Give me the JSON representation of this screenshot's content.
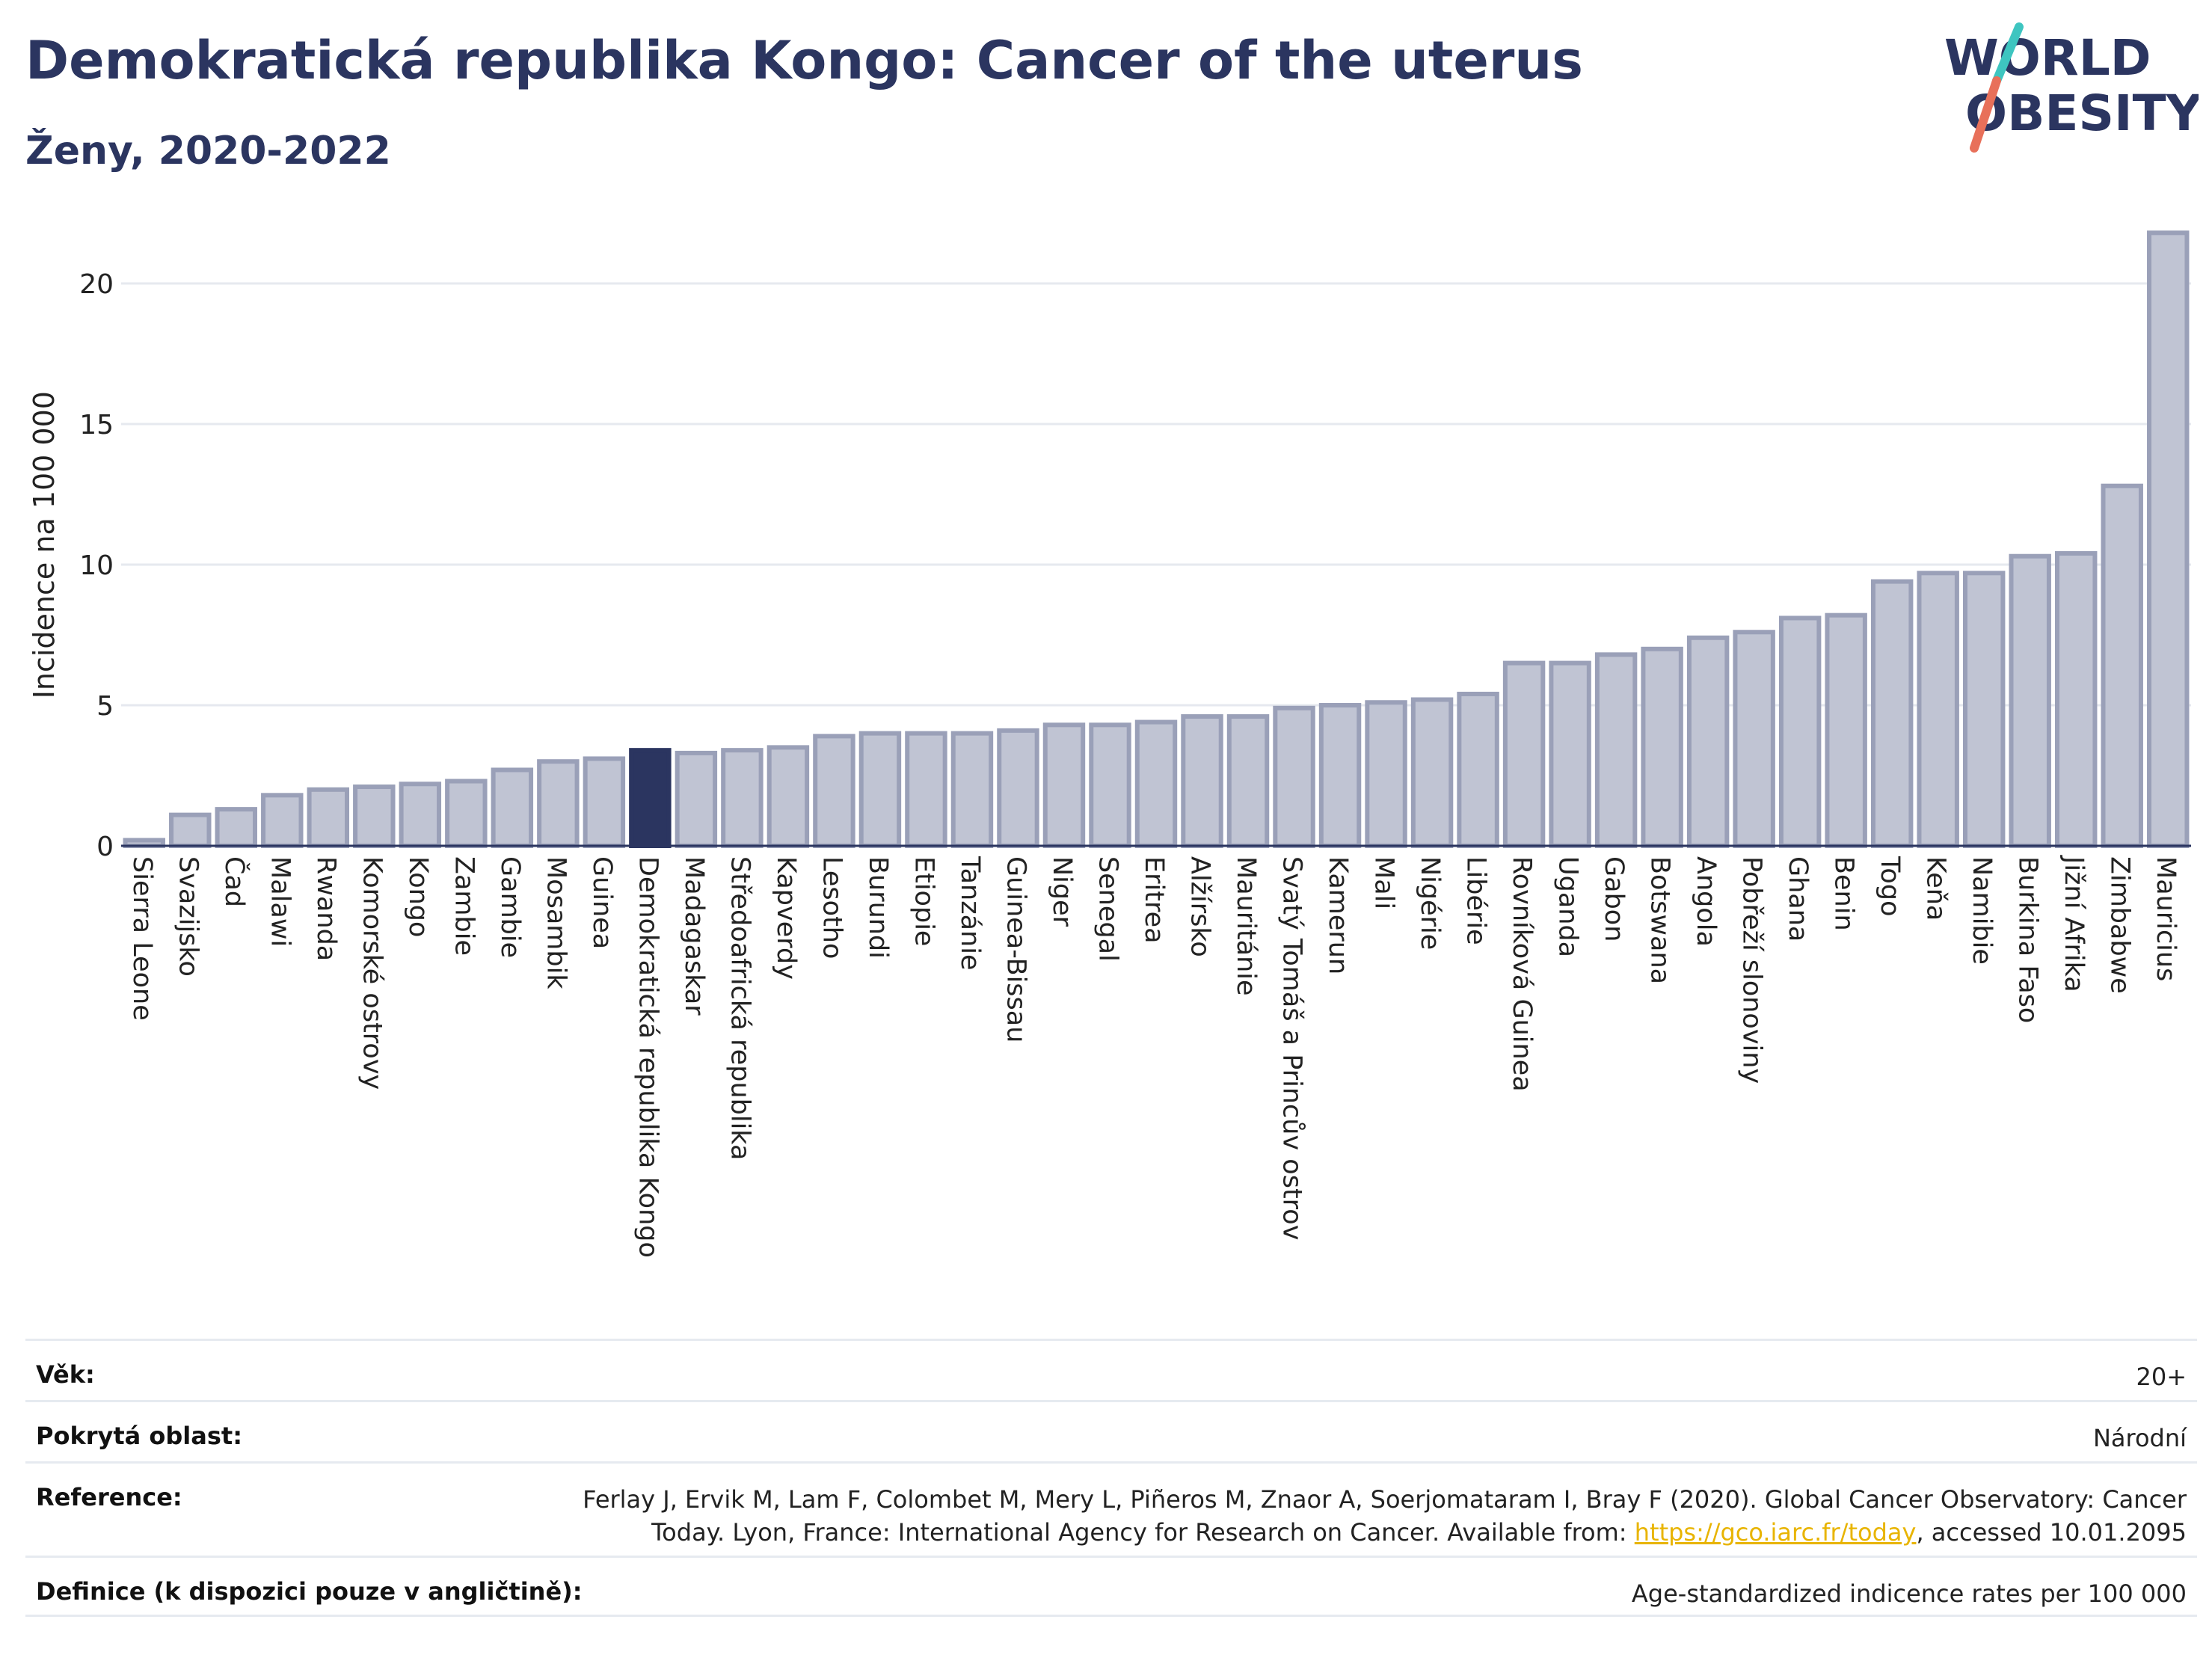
{
  "header": {
    "title": "Demokratická republika Kongo: Cancer of the uterus",
    "subtitle": "Ženy, 2020-2022"
  },
  "logo": {
    "line1": "WORLD",
    "line2": "OBESITY"
  },
  "colors": {
    "highlight": "#2b3560",
    "bar_fill": "#c0c4d3",
    "bar_stroke": "#9aa0b8",
    "text": "#2b3560",
    "logo_teal": "#3ec5c0",
    "logo_coral": "#e8705a"
  },
  "chart_data": {
    "type": "bar",
    "ylabel": "Incidence na 100 000",
    "ylim": [
      0,
      22
    ],
    "yticks": [
      0,
      5,
      10,
      15,
      20
    ],
    "grid": true,
    "highlight": "Demokratická republika Kongo",
    "categories": [
      "Sierra Leone",
      "Svazijsko",
      "Čad",
      "Malawi",
      "Rwanda",
      "Komorské ostrovy",
      "Kongo",
      "Zambie",
      "Gambie",
      "Mosambik",
      "Guinea",
      "Demokratická republika Kongo",
      "Madagaskar",
      "Středoafrická republika",
      "Kapverdy",
      "Lesotho",
      "Burundi",
      "Etiopie",
      "Tanzánie",
      "Guinea-Bissau",
      "Niger",
      "Senegal",
      "Eritrea",
      "Alžírsko",
      "Mauritánie",
      "Svatý Tomáš a Princův ostrov",
      "Kamerun",
      "Mali",
      "Nigérie",
      "Libérie",
      "Rovníková Guinea",
      "Uganda",
      "Gabon",
      "Botswana",
      "Angola",
      "Pobřeží slonoviny",
      "Ghana",
      "Benin",
      "Togo",
      "Keňa",
      "Namibie",
      "Burkina Faso",
      "Jižní Afrika",
      "Zimbabwe",
      "Mauricius"
    ],
    "values": [
      0.2,
      1.1,
      1.3,
      1.8,
      2.0,
      2.1,
      2.2,
      2.3,
      2.7,
      3.0,
      3.1,
      3.4,
      3.3,
      3.4,
      3.5,
      3.9,
      4.0,
      4.0,
      4.0,
      4.1,
      4.3,
      4.3,
      4.4,
      4.6,
      4.6,
      4.9,
      5.0,
      5.1,
      5.2,
      5.4,
      6.5,
      6.5,
      6.8,
      7.0,
      7.4,
      7.6,
      8.1,
      8.2,
      9.4,
      9.7,
      9.7,
      10.3,
      10.4,
      12.8,
      21.8
    ]
  },
  "info": {
    "rows": [
      {
        "key": "Věk:",
        "value": "20+"
      },
      {
        "key": "Pokrytá oblast:",
        "value": "Národní"
      },
      {
        "key": "Reference:",
        "value_line1": "Ferlay J, Ervik M, Lam F, Colombet M, Mery L, Piñeros M, Znaor A, Soerjomataram I, Bray F (2020). Global Cancer Observatory: Cancer",
        "value_line2_pre": "Today. Lyon, France: International Agency for Research on Cancer. Available from: ",
        "link": "https://gco.iarc.fr/today",
        "value_line2_post": ", accessed 10.01.2095"
      },
      {
        "key": "Definice (k dispozici pouze v angličtině):",
        "value": "Age-standardized indicence rates per 100 000"
      }
    ]
  }
}
